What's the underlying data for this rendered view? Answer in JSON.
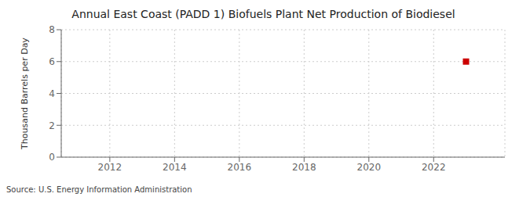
{
  "chart_data": {
    "type": "scatter",
    "title": "Annual East Coast (PADD 1) Biofuels Plant Net Production of Biodiesel",
    "ylabel": "Thousand Barrels per Day",
    "annotations": [
      "Source: U.S. Energy Information Administration"
    ],
    "x": [
      2023
    ],
    "values": [
      6.0
    ],
    "color": "#cc0000",
    "marker": "square",
    "xlim": [
      2010.5,
      2024.2
    ],
    "xticks": [
      2012,
      2014,
      2016,
      2018,
      2020,
      2022
    ],
    "ylim": [
      0,
      8
    ],
    "yticks": [
      0,
      2,
      4,
      6,
      8
    ],
    "grid": true
  }
}
